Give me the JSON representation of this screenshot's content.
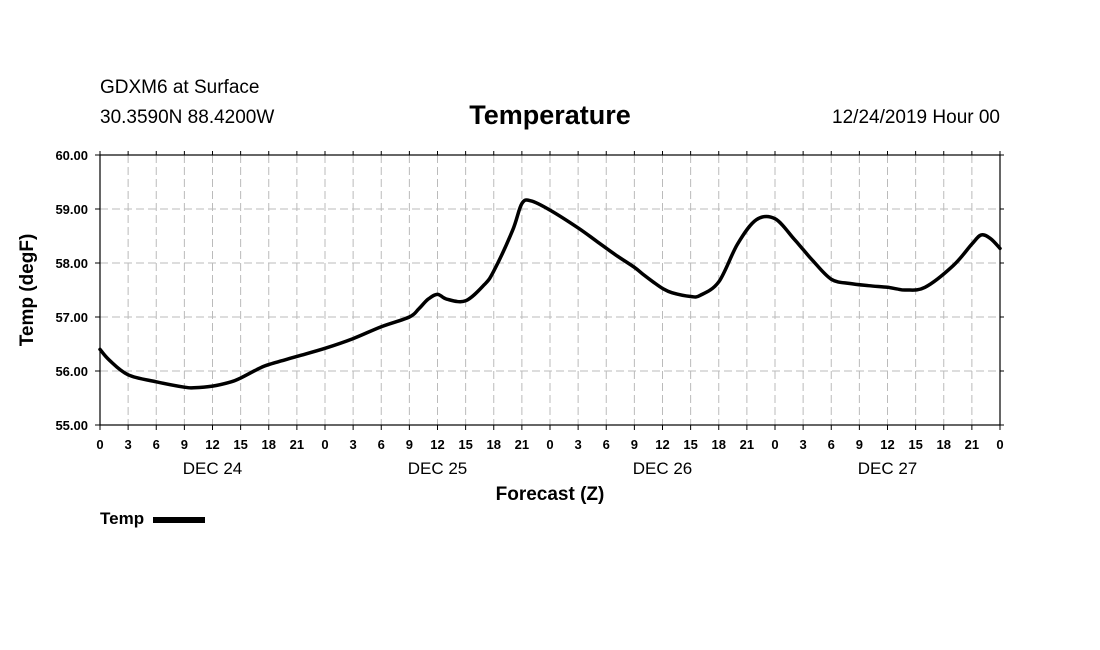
{
  "header": {
    "station": "GDXM6 at Surface",
    "coords": "30.3590N 88.4200W",
    "run_time": "12/24/2019 Hour 00"
  },
  "legend": {
    "label": "Temp"
  },
  "chart_data": {
    "type": "line",
    "title": "Temperature",
    "xlabel": "Forecast (Z)",
    "ylabel": "Temp (degF)",
    "ylim": [
      55.0,
      60.0
    ],
    "xlim": [
      0,
      96
    ],
    "y_ticks": [
      "55.00",
      "56.00",
      "57.00",
      "58.00",
      "59.00",
      "60.00"
    ],
    "x_tick_labels": [
      "0",
      "3",
      "6",
      "9",
      "12",
      "15",
      "18",
      "21",
      "0",
      "3",
      "6",
      "9",
      "12",
      "15",
      "18",
      "21",
      "0",
      "3",
      "6",
      "9",
      "12",
      "15",
      "18",
      "21",
      "0",
      "3",
      "6",
      "9",
      "12",
      "15",
      "18",
      "21",
      "0"
    ],
    "day_labels": [
      {
        "label": "DEC 24",
        "hour": 12
      },
      {
        "label": "DEC 25",
        "hour": 36
      },
      {
        "label": "DEC 26",
        "hour": 60
      },
      {
        "label": "DEC 27",
        "hour": 84
      }
    ],
    "grid": true,
    "legend_position": "bottom-left",
    "series": [
      {
        "name": "Temp",
        "color": "#000000",
        "x": [
          0,
          1,
          3,
          6,
          9,
          10,
          12,
          14,
          15,
          17,
          18,
          21,
          24,
          27,
          30,
          33,
          34,
          35,
          36,
          37,
          39,
          41,
          42,
          44,
          45,
          46,
          48,
          51,
          53,
          55,
          57,
          58,
          59,
          60,
          61,
          63,
          64,
          66,
          68,
          70,
          72,
          74,
          75,
          76,
          78,
          80,
          82,
          84,
          85,
          86,
          88,
          91,
          93,
          94,
          95,
          96
        ],
        "values": [
          56.4,
          56.2,
          55.93,
          55.8,
          55.7,
          55.69,
          55.72,
          55.8,
          55.87,
          56.05,
          56.12,
          56.27,
          56.42,
          56.6,
          56.82,
          57.0,
          57.15,
          57.33,
          57.42,
          57.33,
          57.3,
          57.6,
          57.85,
          58.6,
          59.1,
          59.15,
          58.98,
          58.65,
          58.4,
          58.15,
          57.92,
          57.78,
          57.65,
          57.53,
          57.45,
          57.38,
          57.4,
          57.65,
          58.35,
          58.8,
          58.82,
          58.45,
          58.25,
          58.05,
          57.7,
          57.62,
          57.58,
          57.55,
          57.52,
          57.5,
          57.55,
          57.95,
          58.35,
          58.52,
          58.45,
          58.27
        ]
      }
    ]
  }
}
